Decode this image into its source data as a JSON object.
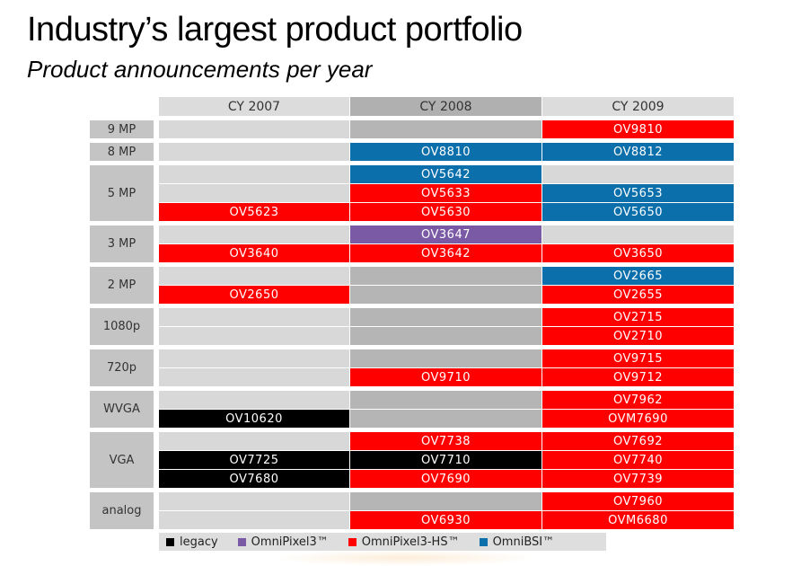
{
  "title": "Industry’s largest product portfolio",
  "subtitle": "Product announcements per year",
  "years": [
    "CY 2007",
    "CY 2008",
    "CY 2009"
  ],
  "colors": {
    "legacy": "#000000",
    "omnipixel3": "#7a5aa5",
    "omnipixel3hs": "#ff0000",
    "omnibsi": "#0b6fac",
    "empty_light": "#d8d8d8",
    "empty_dark": "#b5b5b5",
    "header_light": "#dcdcdc",
    "header_dark": "#b0b0b0"
  },
  "groups": [
    {
      "label": "9 MP",
      "rows": [
        [
          null,
          null,
          {
            "t": "OV9810",
            "c": "omnipixel3hs"
          }
        ]
      ]
    },
    {
      "label": "8 MP",
      "rows": [
        [
          null,
          {
            "t": "OV8810",
            "c": "omnibsi"
          },
          {
            "t": "OV8812",
            "c": "omnibsi"
          }
        ]
      ]
    },
    {
      "label": "5 MP",
      "rows": [
        [
          null,
          {
            "t": "OV5642",
            "c": "omnibsi"
          },
          null
        ],
        [
          null,
          {
            "t": "OV5633",
            "c": "omnipixel3hs"
          },
          {
            "t": "OV5653",
            "c": "omnibsi"
          }
        ],
        [
          {
            "t": "OV5623",
            "c": "omnipixel3hs"
          },
          {
            "t": "OV5630",
            "c": "omnipixel3hs"
          },
          {
            "t": "OV5650",
            "c": "omnibsi"
          }
        ]
      ]
    },
    {
      "label": "3 MP",
      "rows": [
        [
          null,
          {
            "t": "OV3647",
            "c": "omnipixel3"
          },
          null
        ],
        [
          {
            "t": "OV3640",
            "c": "omnipixel3hs"
          },
          {
            "t": "OV3642",
            "c": "omnipixel3hs"
          },
          {
            "t": "OV3650",
            "c": "omnipixel3hs"
          }
        ]
      ]
    },
    {
      "label": "2 MP",
      "rows": [
        [
          null,
          null,
          {
            "t": "OV2665",
            "c": "omnibsi"
          }
        ],
        [
          {
            "t": "OV2650",
            "c": "omnipixel3hs"
          },
          null,
          {
            "t": "OV2655",
            "c": "omnipixel3hs"
          }
        ]
      ]
    },
    {
      "label": "1080p",
      "rows": [
        [
          null,
          null,
          {
            "t": "OV2715",
            "c": "omnipixel3hs"
          }
        ],
        [
          null,
          null,
          {
            "t": "OV2710",
            "c": "omnipixel3hs"
          }
        ]
      ]
    },
    {
      "label": "720p",
      "rows": [
        [
          null,
          null,
          {
            "t": "OV9715",
            "c": "omnipixel3hs"
          }
        ],
        [
          null,
          {
            "t": "OV9710",
            "c": "omnipixel3hs"
          },
          {
            "t": "OV9712",
            "c": "omnipixel3hs"
          }
        ]
      ]
    },
    {
      "label": "WVGA",
      "rows": [
        [
          null,
          null,
          {
            "t": "OV7962",
            "c": "omnipixel3hs"
          }
        ],
        [
          {
            "t": "OV10620",
            "c": "legacy"
          },
          null,
          {
            "t": "OVM7690",
            "c": "omnipixel3hs"
          }
        ]
      ]
    },
    {
      "label": "VGA",
      "rows": [
        [
          null,
          {
            "t": "OV7738",
            "c": "omnipixel3hs"
          },
          {
            "t": "OV7692",
            "c": "omnipixel3hs"
          }
        ],
        [
          {
            "t": "OV7725",
            "c": "legacy"
          },
          {
            "t": "OV7710",
            "c": "legacy"
          },
          {
            "t": "OV7740",
            "c": "omnipixel3hs"
          }
        ],
        [
          {
            "t": "OV7680",
            "c": "legacy"
          },
          {
            "t": "OV7690",
            "c": "omnipixel3hs"
          },
          {
            "t": "OV7739",
            "c": "omnipixel3hs"
          }
        ]
      ]
    },
    {
      "label": "analog",
      "rows": [
        [
          null,
          null,
          {
            "t": "OV7960",
            "c": "omnipixel3hs"
          }
        ],
        [
          null,
          {
            "t": "OV6930",
            "c": "omnipixel3hs"
          },
          {
            "t": "OVM6680",
            "c": "omnipixel3hs"
          }
        ]
      ]
    }
  ],
  "legend": [
    {
      "label": "legacy",
      "c": "legacy"
    },
    {
      "label": "OmniPixel3™",
      "c": "omnipixel3"
    },
    {
      "label": "OmniPixel3-HS™",
      "c": "omnipixel3hs"
    },
    {
      "label": "OmniBSI™",
      "c": "omnibsi"
    }
  ]
}
